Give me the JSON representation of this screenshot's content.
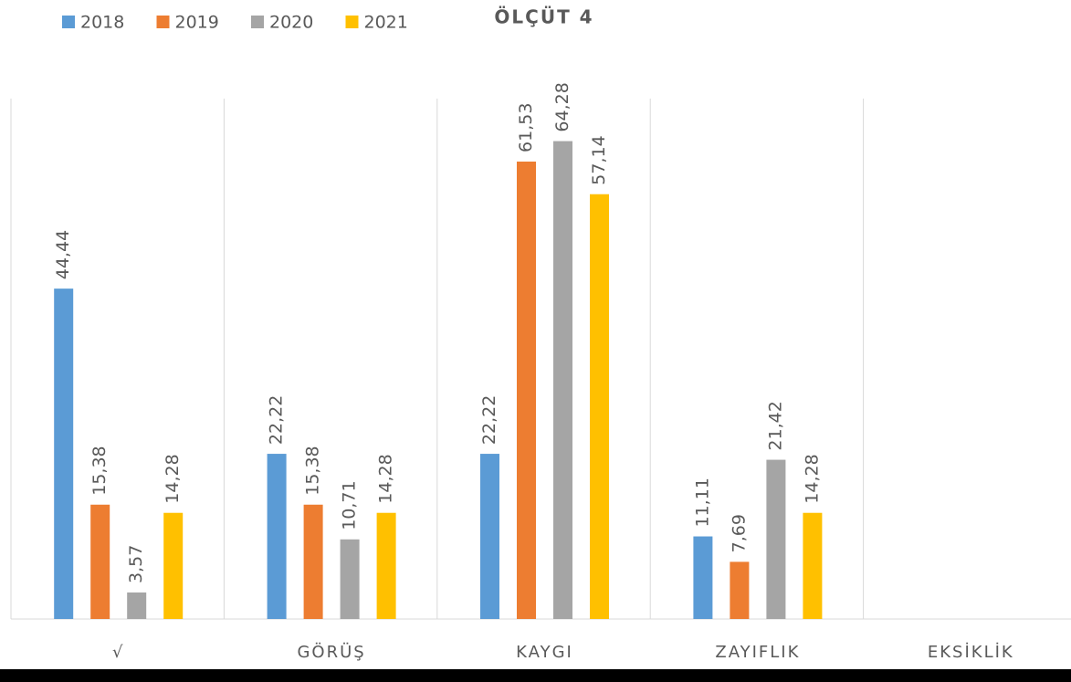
{
  "chart_data": {
    "type": "bar",
    "title": "ÖLÇÜT 4",
    "categories": [
      "√",
      "GÖRÜŞ",
      "KAYGI",
      "ZAYIFLIK",
      "EKSİKLİK"
    ],
    "series": [
      {
        "name": "2018",
        "color": "#5b9bd5",
        "values": [
          44.44,
          22.22,
          22.22,
          11.11,
          null
        ],
        "value_labels": [
          "44,44",
          "22,22",
          "22,22",
          "11,11",
          null
        ]
      },
      {
        "name": "2019",
        "color": "#ed7d31",
        "values": [
          15.38,
          15.38,
          61.53,
          7.69,
          null
        ],
        "value_labels": [
          "15,38",
          "15,38",
          "61,53",
          "7,69",
          null
        ]
      },
      {
        "name": "2020",
        "color": "#a5a5a5",
        "values": [
          3.57,
          10.71,
          64.28,
          21.42,
          null
        ],
        "value_labels": [
          "3,57",
          "10,71",
          "64,28",
          "21,42",
          null
        ]
      },
      {
        "name": "2021",
        "color": "#ffc000",
        "values": [
          14.28,
          14.28,
          57.14,
          14.28,
          null
        ],
        "value_labels": [
          "14,28",
          "14,28",
          "57,14",
          "14,28",
          null
        ]
      }
    ],
    "ylim": [
      0,
      70
    ],
    "legend": "top-left"
  }
}
